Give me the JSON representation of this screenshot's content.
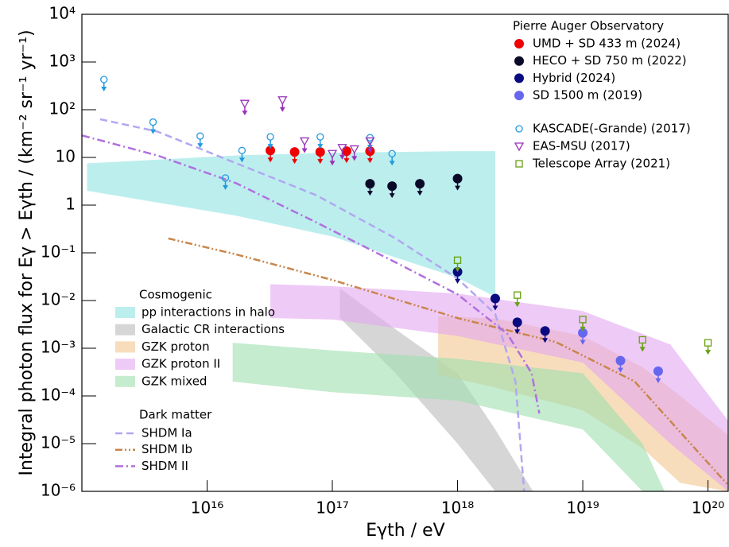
{
  "chart_data": {
    "type": "scatter",
    "log_x": true,
    "log_y": true,
    "x_label": "Eγth / eV",
    "y_label": "Integral photon flux for Eγ > Eγth / (km⁻² sr⁻¹ yr⁻¹)",
    "xlim": [
      1000000000000000.0,
      1.45e+20
    ],
    "ylim": [
      1e-06,
      10000.0
    ],
    "xticks": [
      {
        "value": 1e+16,
        "label": "10¹⁶"
      },
      {
        "value": 1e+17,
        "label": "10¹⁷"
      },
      {
        "value": 1e+18,
        "label": "10¹⁸"
      },
      {
        "value": 1e+19,
        "label": "10¹⁹"
      },
      {
        "value": 1e+20,
        "label": "10²⁰"
      }
    ],
    "yticks": [
      {
        "value": 1e-06,
        "label": "10⁻⁶"
      },
      {
        "value": 1e-05,
        "label": "10⁻⁵"
      },
      {
        "value": 0.0001,
        "label": "10⁻⁴"
      },
      {
        "value": 0.001,
        "label": "10⁻³"
      },
      {
        "value": 0.01,
        "label": "10⁻²"
      },
      {
        "value": 0.1,
        "label": "10⁻¹"
      },
      1,
      10,
      {
        "value": 100,
        "label": "10²"
      },
      {
        "value": 1000,
        "label": "10³"
      },
      {
        "value": 10000,
        "label": "10⁴"
      }
    ],
    "groups": [
      {
        "title": "Pierre Auger Observatory",
        "kind": "points",
        "upper_limit": true,
        "series": [
          {
            "name": "UMD + SD 433 m (2024)",
            "color": "#ee0000",
            "marker": "filled-circle",
            "x": [
              3.2e+16,
              5e+16,
              8e+16,
              1.3e+17,
              2e+17
            ],
            "values": [
              14,
              13,
              13,
              13.5,
              13.5
            ]
          },
          {
            "name": "HECO + SD 750 m (2022)",
            "color": "#0a0a28",
            "marker": "filled-circle",
            "x": [
              2e+17,
              3e+17,
              5e+17,
              1e+18
            ],
            "values": [
              2.8,
              2.5,
              2.8,
              3.6
            ]
          },
          {
            "name": "Hybrid (2024)",
            "color": "#0a0a80",
            "marker": "filled-circle",
            "x": [
              1e+18,
              2e+18,
              3e+18,
              5e+18
            ],
            "values": [
              0.04,
              0.011,
              0.0035,
              0.0023
            ]
          },
          {
            "name": "SD 1500 m (2019)",
            "color": "#6666ee",
            "marker": "filled-circle",
            "x": [
              1e+19,
              2e+19,
              4e+19
            ],
            "values": [
              0.0021,
              0.00055,
              0.00033
            ]
          }
        ]
      },
      {
        "kind": "points",
        "upper_limit": true,
        "series": [
          {
            "name": "KASCADE(-Grande) (2017)",
            "color": "#2299dd",
            "marker": "open-circle",
            "x": [
              1500000000000000.0,
              3700000000000000.0,
              8800000000000000.0,
              1.4e+16,
              1.9e+16,
              3.2e+16,
              8e+16,
              2e+17,
              3e+17
            ],
            "values": [
              430,
              55,
              28,
              3.7,
              14,
              27,
              27,
              26,
              12
            ]
          },
          {
            "name": "EAS-MSU (2017)",
            "color": "#9933bb",
            "marker": "open-triangle-down",
            "x": [
              2e+16,
              4e+16,
              6e+16,
              1e+17,
              1.2e+17,
              1.5e+17,
              2e+17
            ],
            "values": [
              135,
              160,
              22,
              12,
              16,
              15,
              22
            ]
          },
          {
            "name": "Telescope Array (2021)",
            "color": "#66a010",
            "marker": "open-square",
            "x": [
              1e+18,
              3e+18,
              1e+19,
              3e+19,
              1e+20
            ],
            "values": [
              0.07,
              0.013,
              0.004,
              0.0015,
              0.0013
            ]
          }
        ]
      },
      {
        "title": "Cosmogenic",
        "kind": "bands",
        "series": [
          {
            "name": "pp interactions in halo",
            "color": "#8fe3e3",
            "x": [
              1100000000000000.0,
              1.7e+16,
              1e+17,
              3.2e+17,
              1e+18,
              2e+18
            ],
            "upper": [
              7.5,
              11,
              12.5,
              13,
              13.5,
              13.5
            ],
            "lower": [
              2,
              0.6,
              0.22,
              0.08,
              0.03,
              0.012
            ]
          },
          {
            "name": "Galactic CR interactions",
            "color": "#bbbbbb",
            "x": [
              1.15e+17,
              3.2e+17,
              1e+18,
              2e+18,
              4e+18
            ],
            "upper": [
              0.018,
              0.0025,
              0.0003,
              2e-05,
              1e-06
            ],
            "lower": [
              0.0043,
              0.0003,
              1e-05,
              1e-06,
              1e-06
            ]
          },
          {
            "name": "GZK proton",
            "color": "#f4c690",
            "x": [
              7e+17,
              2e+18,
              1e+19,
              3e+19,
              6e+19,
              1.45e+20
            ],
            "upper": [
              0.0047,
              0.0042,
              0.0018,
              0.0004,
              0.0001,
              1.5e-05
            ],
            "lower": [
              0.00028,
              0.00015,
              5e-05,
              8e-06,
              1.5e-06,
              1e-06
            ]
          },
          {
            "name": "GZK proton II",
            "color": "#e3a6f0",
            "x": [
              3.2e+16,
              1e+17,
              1e+18,
              1e+19,
              5e+19,
              1.45e+20
            ],
            "upper": [
              0.022,
              0.02,
              0.014,
              0.006,
              0.0012,
              3e-05
            ],
            "lower": [
              0.0043,
              0.004,
              0.0018,
              0.0005,
              1e-05,
              1e-06
            ]
          },
          {
            "name": "GZK mixed",
            "color": "#9edfae",
            "x": [
              1.6e+16,
              1e+17,
              1e+18,
              1e+19,
              3e+19,
              4.5e+19
            ],
            "upper": [
              0.0013,
              0.0009,
              0.0006,
              0.0003,
              1e-05,
              1e-06
            ],
            "lower": [
              0.0002,
              0.00012,
              8e-05,
              2e-05,
              1e-06,
              1e-06
            ]
          }
        ]
      },
      {
        "title": "Dark matter",
        "kind": "lines",
        "series": [
          {
            "name": "SHDM Ia",
            "color": "#b0a8f0",
            "dash": "dashed",
            "x": [
              1400000000000000.0,
              4000000000000000.0,
              1.7e+16,
              7.5e+16,
              3.2e+17,
              1e+18,
              2e+18,
              2.9e+18,
              3.4e+18
            ],
            "values": [
              63,
              35,
              7.6,
              1.6,
              0.2,
              0.029,
              0.0052,
              0.0002,
              1e-06
            ]
          },
          {
            "name": "SHDM Ib",
            "color": "#c8864b",
            "dash": "dash-dot-dot",
            "x": [
              4900000000000000.0,
              1.7e+16,
              1e+17,
              1e+18,
              6.1e+18,
              2.6e+19,
              8.5e+19,
              1.45e+20
            ],
            "values": [
              0.2,
              0.093,
              0.027,
              0.0043,
              0.00135,
              0.0002,
              6.3e-06,
              1.35e-06
            ]
          },
          {
            "name": "SHDM II",
            "color": "#b070e0",
            "dash": "dash-dot",
            "x": [
              1000000000000000.0,
              4000000000000000.0,
              1.7e+16,
              7.5e+16,
              3.2e+17,
              1e+18,
              2.5e+18,
              3.9e+18,
              4.5e+18
            ],
            "values": [
              29,
              11,
              2.9,
              0.43,
              0.063,
              0.0135,
              0.002,
              0.0003,
              4.3e-05
            ]
          }
        ]
      }
    ]
  }
}
